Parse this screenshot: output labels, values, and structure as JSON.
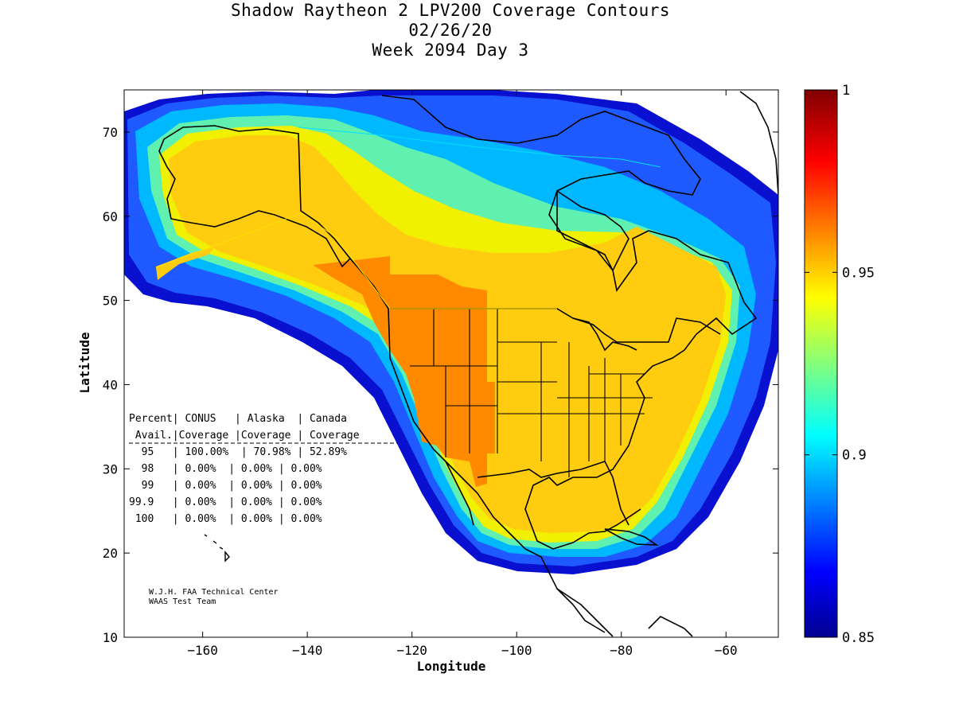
{
  "title": {
    "line1": "Shadow Raytheon 2 LPV200 Coverage Contours",
    "line2": "02/26/20",
    "line3": "Week 2094 Day 3"
  },
  "axes": {
    "xlabel": "Longitude",
    "ylabel": "Latitude",
    "xlim": [
      -175,
      -50
    ],
    "ylim": [
      10,
      75
    ],
    "xticks": [
      -160,
      -140,
      -120,
      -100,
      -80,
      -60
    ],
    "yticks": [
      10,
      20,
      30,
      40,
      50,
      60,
      70
    ]
  },
  "colorbar": {
    "range": [
      0.85,
      1
    ],
    "ticks": [
      "1",
      "0.95",
      "0.9",
      "0.85"
    ],
    "colors": {
      "dark_blue": "#00008f",
      "blue": "#0040ff",
      "cyan": "#00c8ff",
      "green": "#80ff80",
      "yellow": "#ffcc00",
      "orange": "#ff8000",
      "red": "#ff0000",
      "dark_red": "#800000"
    }
  },
  "table": {
    "header1": "Percent| CONUS   | Alaska  | Canada",
    "header2": " Avail.|Coverage |Coverage | Coverage",
    "rows": [
      "  95   | 100.00%  | 70.98% | 52.89%",
      "  98   | 0.00%  | 0.00% | 0.00%",
      "  99   | 0.00%  | 0.00% | 0.00%",
      "99.9   | 0.00%  | 0.00% | 0.00%",
      " 100   | 0.00%  | 0.00% | 0.00%"
    ]
  },
  "credit": {
    "line1": "W.J.H. FAA Technical Center",
    "line2": "WAAS Test Team"
  },
  "chart_data": {
    "type": "heatmap",
    "title": "Shadow Raytheon 2 LPV200 Coverage Contours",
    "subtitle": "02/26/20 Week 2094 Day 3",
    "xlabel": "Longitude",
    "ylabel": "Latitude",
    "xlim": [
      -175,
      -50
    ],
    "ylim": [
      10,
      75
    ],
    "value_range": [
      0.85,
      1
    ],
    "coverage_table": {
      "columns": [
        "Percent Avail.",
        "CONUS Coverage",
        "Alaska Coverage",
        "Canada Coverage"
      ],
      "rows": [
        [
          "95",
          "100.00%",
          "70.98%",
          "52.89%"
        ],
        [
          "98",
          "0.00%",
          "0.00%",
          "0.00%"
        ],
        [
          "99",
          "0.00%",
          "0.00%",
          "0.00%"
        ],
        [
          "99.9",
          "0.00%",
          "0.00%",
          "0.00%"
        ],
        [
          "100",
          "0.00%",
          "0.00%",
          "0.00%"
        ]
      ]
    }
  }
}
